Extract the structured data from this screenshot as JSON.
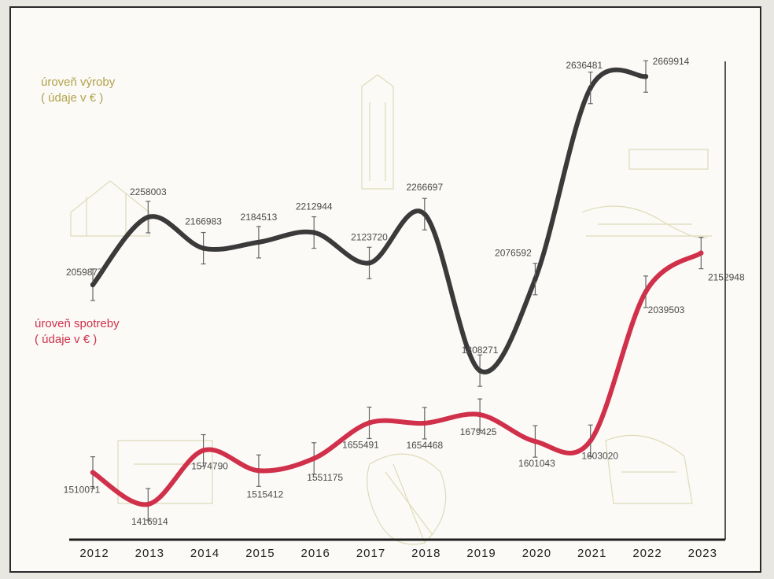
{
  "chart_data": {
    "type": "line",
    "x": [
      "2012",
      "2013",
      "2014",
      "2015",
      "2016",
      "2017",
      "2018",
      "2019",
      "2020",
      "2021",
      "2022",
      "2023"
    ],
    "series": [
      {
        "name": "úroveň výroby ( údaje v € )",
        "color": "#3a3a3a",
        "values": [
          2059877,
          2258003,
          2166983,
          2184513,
          2212944,
          2123720,
          2266697,
          1808271,
          2076592,
          2636481,
          2669914,
          null
        ],
        "labels": [
          "2059877",
          "2258003",
          "2166983",
          "2184513",
          "2212944",
          "2123720",
          "2266697",
          "1808271",
          "2076592",
          "2636481",
          "2669914",
          ""
        ]
      },
      {
        "name": "úroveň spotreby ( údaje v € )",
        "color": "#d0304a",
        "values": [
          1510071,
          1416914,
          1574790,
          1515412,
          1551175,
          1655491,
          1654468,
          1679425,
          1601043,
          1603020,
          2039503,
          2152948
        ],
        "labels": [
          "1510071",
          "1416914",
          "1574790",
          "1515412",
          "1551175",
          "1655491",
          "1654468",
          "1679425",
          "1601043",
          "1603020",
          "2039503",
          "2152948"
        ]
      }
    ],
    "series_titles": [
      {
        "line1": "úroveň výroby",
        "line2": "( údaje v € )"
      },
      {
        "line1": "úroveň spotreby",
        "line2": "( údaje v € )"
      }
    ],
    "error_bars": true,
    "axes_visible": "x-bottom and right only",
    "grid": false,
    "legend": "inline labels (top-left)",
    "title": "",
    "xlabel": "",
    "ylabel": ""
  }
}
